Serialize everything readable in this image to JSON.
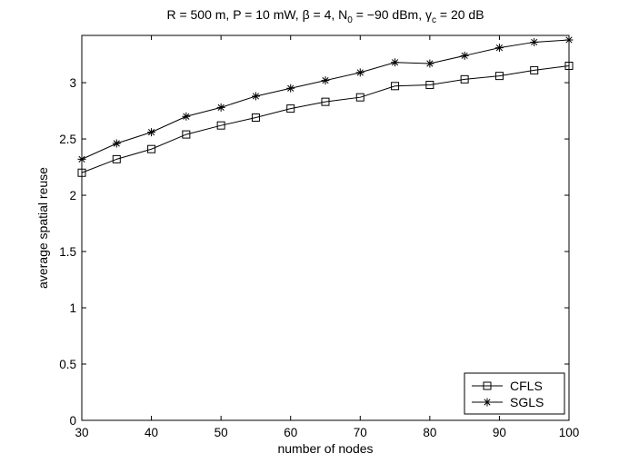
{
  "chart_data": {
    "type": "line",
    "title": "R = 500 m, P = 10 mW, β = 4, N₀ = −90 dBm, γc = 20 dB",
    "title_parts": {
      "r": "R = 500 m, P = 10 mW, ",
      "beta": "β = 4, N",
      "n0_sub": "0",
      "n0_val": " = −90 dBm, ",
      "gamma": "γ",
      "gamma_sub": "c",
      "gamma_val": " = 20 dB"
    },
    "xlabel": "number of nodes",
    "ylabel": "average spatial reuse",
    "xlim": [
      30,
      100
    ],
    "ylim": [
      0,
      3.42
    ],
    "xticks": [
      30,
      40,
      50,
      60,
      70,
      80,
      90,
      100
    ],
    "yticks": [
      0,
      0.5,
      1,
      1.5,
      2,
      2.5,
      3
    ],
    "ytick_labels": [
      "0",
      "0.5",
      "1",
      "1.5",
      "2",
      "2.5",
      "3"
    ],
    "grid": false,
    "legend_position": "bottom-right",
    "x": [
      30,
      35,
      40,
      45,
      50,
      55,
      60,
      65,
      70,
      75,
      80,
      85,
      90,
      95,
      100
    ],
    "series": [
      {
        "name": "CFLS",
        "marker": "square",
        "values": [
          2.2,
          2.32,
          2.41,
          2.54,
          2.62,
          2.69,
          2.77,
          2.83,
          2.87,
          2.97,
          2.98,
          3.03,
          3.06,
          3.11,
          3.15
        ]
      },
      {
        "name": "SGLS",
        "marker": "star",
        "values": [
          2.32,
          2.46,
          2.56,
          2.7,
          2.78,
          2.88,
          2.95,
          3.02,
          3.09,
          3.18,
          3.17,
          3.24,
          3.31,
          3.36,
          3.38
        ]
      }
    ]
  }
}
